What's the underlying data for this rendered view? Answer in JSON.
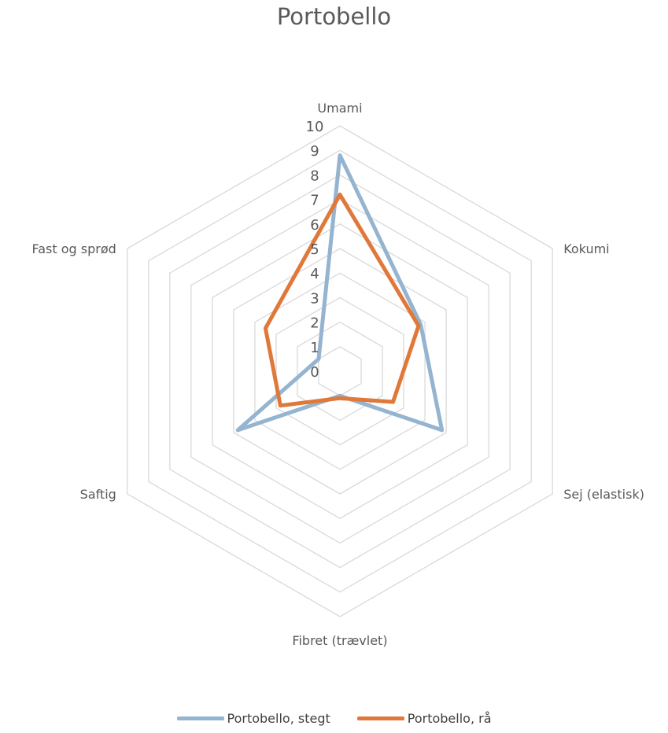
{
  "chart_data": {
    "type": "radar",
    "title": "Portobello",
    "axes": [
      "Umami",
      "Kokumi",
      "Sej (elastisk)",
      "Fibret (trævlet)",
      "Saftig",
      "Fast og sprød"
    ],
    "rlim": [
      0,
      10
    ],
    "ticks": [
      "0",
      "1",
      "2",
      "3",
      "4",
      "5",
      "6",
      "7",
      "8",
      "9",
      "10"
    ],
    "grid": true,
    "legend_position": "bottom",
    "series": [
      {
        "name": "Portobello, stegt",
        "color": "#94B4CF",
        "values": [
          8.8,
          3.8,
          4.8,
          1.0,
          4.8,
          1.0
        ]
      },
      {
        "name": "Portobello, rå",
        "color": "#E0783A",
        "values": [
          7.2,
          3.7,
          2.5,
          1.1,
          2.8,
          3.5
        ]
      }
    ]
  }
}
